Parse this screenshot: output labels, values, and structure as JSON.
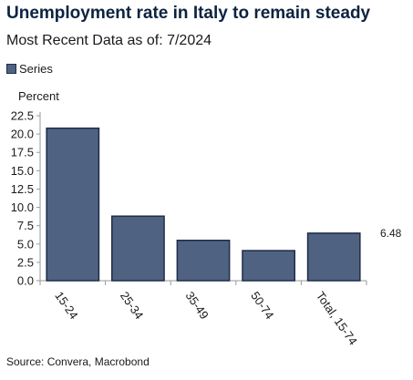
{
  "header": {
    "title": "Unemployment rate in Italy to remain steady",
    "subtitle": "Most Recent Data as of: 7/2024"
  },
  "legend": {
    "label": "Series"
  },
  "source": "Source: Convera, Macrobond",
  "chart_data": {
    "type": "bar",
    "title": "Unemployment rate in Italy to remain steady",
    "subtitle": "Most Recent Data as of: 7/2024",
    "ylabel": "Percent",
    "xlabel": "",
    "categories": [
      "15-24",
      "25-34",
      "35-49",
      "50-74",
      "Total, 15-74"
    ],
    "series": [
      {
        "name": "Series",
        "values": [
          20.8,
          8.8,
          5.5,
          4.1,
          6.48
        ]
      }
    ],
    "ylim": [
      0,
      22.5
    ],
    "yticks": [
      "0.0",
      "2.5",
      "5.0",
      "7.5",
      "10.0",
      "12.5",
      "15.0",
      "17.5",
      "20.0",
      "22.5"
    ],
    "annotations": [
      {
        "category": "Total, 15-74",
        "text": "6.48"
      }
    ],
    "bar_color": "#4f6282",
    "bar_edge_color": "#1f2d47",
    "legend_position": "top-left",
    "grid": false
  }
}
